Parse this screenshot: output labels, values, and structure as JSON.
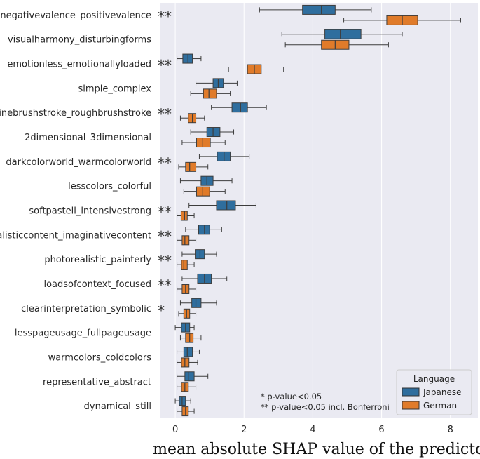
{
  "chart_data": {
    "type": "boxplot",
    "orientation": "horizontal",
    "xlabel": "mean absolute SHAP value of the predictor",
    "ylabel": "",
    "xlim": [
      -0.45,
      8.8
    ],
    "xticks": [
      0,
      2,
      4,
      6,
      8
    ],
    "grid": true,
    "legend": {
      "title": "Language",
      "position": "bottom-right",
      "entries": [
        {
          "name": "Japanese",
          "color": "#2f6e9e"
        },
        {
          "name": "German",
          "color": "#e07b2a"
        }
      ]
    },
    "notes": [
      "* p-value<0.05",
      "** p-value<0.05 incl. Bonferroni"
    ],
    "series": [
      {
        "name": "Japanese",
        "color": "#2f6e9e"
      },
      {
        "name": "German",
        "color": "#e07b2a"
      }
    ],
    "categories": [
      {
        "label": "negativevalence_positivevalence",
        "sig": "**",
        "japanese": {
          "whislo": 2.45,
          "q1": 3.7,
          "med": 4.25,
          "q3": 4.65,
          "whishi": 5.7
        },
        "german": {
          "whislo": 4.9,
          "q1": 6.15,
          "med": 6.6,
          "q3": 7.05,
          "whishi": 8.3
        }
      },
      {
        "label": "visualharmony_disturbingforms",
        "sig": "",
        "japanese": {
          "whislo": 3.1,
          "q1": 4.35,
          "med": 4.8,
          "q3": 5.4,
          "whishi": 6.6
        },
        "german": {
          "whislo": 3.2,
          "q1": 4.25,
          "med": 4.65,
          "q3": 5.05,
          "whishi": 6.2
        }
      },
      {
        "label": "emotionless_emotionallyloaded",
        "sig": "**",
        "japanese": {
          "whislo": 0.05,
          "q1": 0.22,
          "med": 0.37,
          "q3": 0.5,
          "whishi": 0.75
        },
        "german": {
          "whislo": 1.55,
          "q1": 2.1,
          "med": 2.3,
          "q3": 2.5,
          "whishi": 3.15
        }
      },
      {
        "label": "simple_complex",
        "sig": "",
        "japanese": {
          "whislo": 0.6,
          "q1": 1.1,
          "med": 1.25,
          "q3": 1.4,
          "whishi": 1.8
        },
        "german": {
          "whislo": 0.45,
          "q1": 0.82,
          "med": 0.98,
          "q3": 1.2,
          "whishi": 1.6
        }
      },
      {
        "label": "finebrushstroke_roughbrushstroke",
        "sig": "**",
        "japanese": {
          "whislo": 1.05,
          "q1": 1.65,
          "med": 1.9,
          "q3": 2.1,
          "whishi": 2.65
        },
        "german": {
          "whislo": 0.15,
          "q1": 0.38,
          "med": 0.5,
          "q3": 0.6,
          "whishi": 0.85
        }
      },
      {
        "label": "2dimensional_3dimensional",
        "sig": "",
        "japanese": {
          "whislo": 0.45,
          "q1": 0.92,
          "med": 1.1,
          "q3": 1.3,
          "whishi": 1.7
        },
        "german": {
          "whislo": 0.2,
          "q1": 0.62,
          "med": 0.8,
          "q3": 1.02,
          "whishi": 1.45
        }
      },
      {
        "label": "darkcolorworld_warmcolorworld",
        "sig": "**",
        "japanese": {
          "whislo": 0.7,
          "q1": 1.22,
          "med": 1.42,
          "q3": 1.6,
          "whishi": 2.15
        },
        "german": {
          "whislo": 0.1,
          "q1": 0.3,
          "med": 0.42,
          "q3": 0.6,
          "whishi": 0.95
        }
      },
      {
        "label": "lesscolors_colorful",
        "sig": "",
        "japanese": {
          "whislo": 0.15,
          "q1": 0.75,
          "med": 0.92,
          "q3": 1.1,
          "whishi": 1.65
        },
        "german": {
          "whislo": 0.25,
          "q1": 0.62,
          "med": 0.8,
          "q3": 1.0,
          "whishi": 1.45
        }
      },
      {
        "label": "softpastell_intensivestrong",
        "sig": "**",
        "japanese": {
          "whislo": 0.4,
          "q1": 1.2,
          "med": 1.5,
          "q3": 1.75,
          "whishi": 2.35
        },
        "german": {
          "whislo": 0.05,
          "q1": 0.17,
          "med": 0.27,
          "q3": 0.35,
          "whishi": 0.55
        }
      },
      {
        "label": "realisticcontent_imaginativecontent",
        "sig": "**",
        "japanese": {
          "whislo": 0.3,
          "q1": 0.68,
          "med": 0.85,
          "q3": 1.0,
          "whishi": 1.35
        },
        "german": {
          "whislo": 0.05,
          "q1": 0.2,
          "med": 0.28,
          "q3": 0.4,
          "whishi": 0.6
        }
      },
      {
        "label": "photorealistic_painterly",
        "sig": "**",
        "japanese": {
          "whislo": 0.2,
          "q1": 0.58,
          "med": 0.72,
          "q3": 0.85,
          "whishi": 1.2
        },
        "german": {
          "whislo": 0.05,
          "q1": 0.18,
          "med": 0.25,
          "q3": 0.35,
          "whishi": 0.55
        }
      },
      {
        "label": "loadsofcontext_focused",
        "sig": "**",
        "japanese": {
          "whislo": 0.2,
          "q1": 0.65,
          "med": 0.85,
          "q3": 1.05,
          "whishi": 1.5
        },
        "german": {
          "whislo": 0.05,
          "q1": 0.2,
          "med": 0.3,
          "q3": 0.4,
          "whishi": 0.6
        }
      },
      {
        "label": "clearinterpretation_symbolic",
        "sig": "*",
        "japanese": {
          "whislo": 0.15,
          "q1": 0.48,
          "med": 0.6,
          "q3": 0.75,
          "whishi": 1.2
        },
        "german": {
          "whislo": 0.1,
          "q1": 0.25,
          "med": 0.33,
          "q3": 0.42,
          "whishi": 0.6
        }
      },
      {
        "label": "lesspageusage_fullpageusage",
        "sig": "",
        "japanese": {
          "whislo": 0.0,
          "q1": 0.18,
          "med": 0.3,
          "q3": 0.42,
          "whishi": 0.55
        },
        "german": {
          "whislo": 0.15,
          "q1": 0.3,
          "med": 0.42,
          "q3": 0.52,
          "whishi": 0.75
        }
      },
      {
        "label": "warmcolors_coldcolors",
        "sig": "",
        "japanese": {
          "whislo": 0.05,
          "q1": 0.25,
          "med": 0.35,
          "q3": 0.5,
          "whishi": 0.7
        },
        "german": {
          "whislo": 0.05,
          "q1": 0.18,
          "med": 0.28,
          "q3": 0.4,
          "whishi": 0.65
        }
      },
      {
        "label": "representative_abstract",
        "sig": "",
        "japanese": {
          "whislo": 0.05,
          "q1": 0.28,
          "med": 0.38,
          "q3": 0.55,
          "whishi": 0.95
        },
        "german": {
          "whislo": 0.05,
          "q1": 0.18,
          "med": 0.28,
          "q3": 0.38,
          "whishi": 0.6
        }
      },
      {
        "label": "dynamical_still",
        "sig": "",
        "japanese": {
          "whislo": 0.0,
          "q1": 0.12,
          "med": 0.2,
          "q3": 0.3,
          "whishi": 0.45
        },
        "german": {
          "whislo": 0.05,
          "q1": 0.2,
          "med": 0.3,
          "q3": 0.38,
          "whishi": 0.55
        }
      }
    ]
  }
}
